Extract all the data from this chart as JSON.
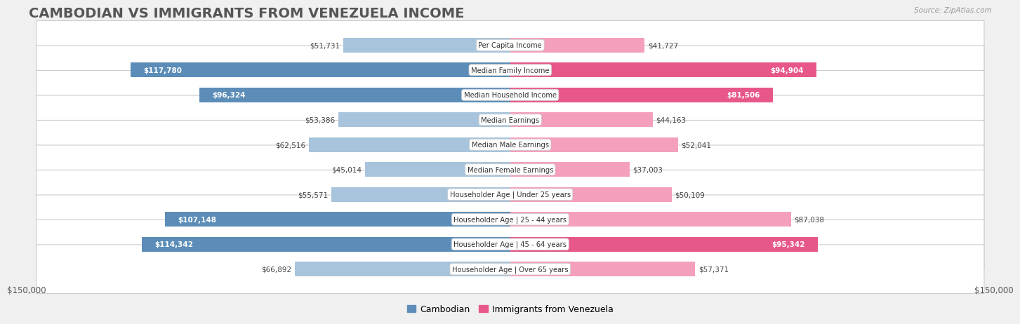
{
  "title": "CAMBODIAN VS IMMIGRANTS FROM VENEZUELA INCOME",
  "source": "Source: ZipAtlas.com",
  "categories": [
    "Per Capita Income",
    "Median Family Income",
    "Median Household Income",
    "Median Earnings",
    "Median Male Earnings",
    "Median Female Earnings",
    "Householder Age | Under 25 years",
    "Householder Age | 25 - 44 years",
    "Householder Age | 45 - 64 years",
    "Householder Age | Over 65 years"
  ],
  "cambodian_values": [
    51731,
    117780,
    96324,
    53386,
    62516,
    45014,
    55571,
    107148,
    114342,
    66892
  ],
  "venezuela_values": [
    41727,
    94904,
    81506,
    44163,
    52041,
    37003,
    50109,
    87038,
    95342,
    57371
  ],
  "cambodian_strong": [
    false,
    true,
    true,
    false,
    false,
    false,
    false,
    true,
    true,
    false
  ],
  "venezuela_strong": [
    false,
    true,
    true,
    false,
    false,
    false,
    false,
    false,
    true,
    false
  ],
  "max_value": 150000,
  "cambodian_color_strong": "#5B8DB8",
  "cambodian_color_light": "#A8C4DC",
  "venezuela_color_strong": "#E8578A",
  "venezuela_color_light": "#F4A0BC",
  "background_color": "#f0f0f0",
  "row_bg_color": "#ffffff",
  "row_border_color": "#cccccc",
  "title_fontsize": 14,
  "tick_label": "$150,000",
  "legend_cambodian": "Cambodian",
  "legend_venezuela": "Immigrants from Venezuela",
  "label_color_outside": "#444444",
  "label_color_inside": "#ffffff"
}
